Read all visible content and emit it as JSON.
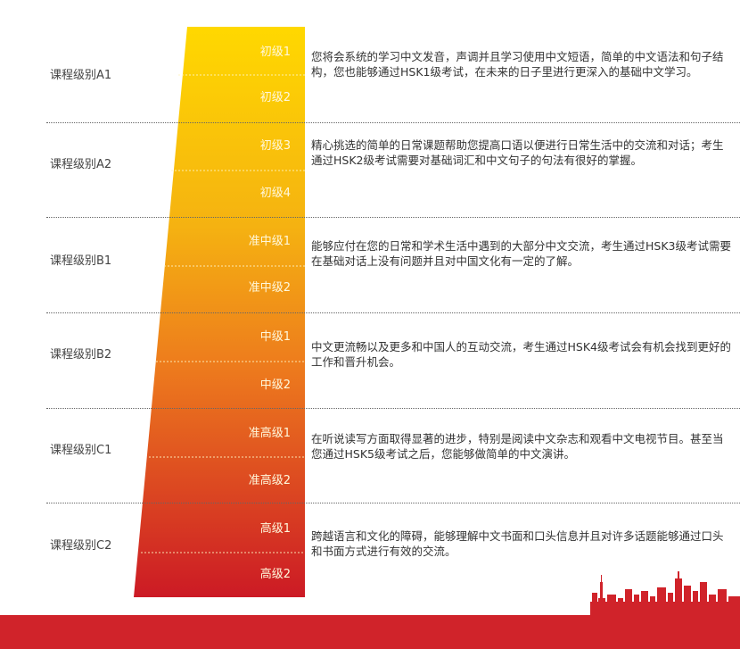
{
  "levels": [
    {
      "label": "课程级别A1",
      "sub1": "初级1",
      "sub2": "初级2",
      "desc": "您将会系统的学习中文发音，声调并且学习使用中文短语，简单的中文语法和句子结构，您也能够通过HSK1级考试，在未来的日子里进行更深入的基础中文学习。"
    },
    {
      "label": "课程级别A2",
      "sub1": "初级3",
      "sub2": "初级4",
      "desc": "精心挑选的简单的日常课题帮助您提高口语以便进行日常生活中的交流和对话；考生通过HSK2级考试需要对基础词汇和中文句子的句法有很好的掌握。"
    },
    {
      "label": "课程级别B1",
      "sub1": "准中级1",
      "sub2": "准中级2",
      "desc": "能够应付在您的日常和学术生活中遇到的大部分中文交流，考生通过HSK3级考试需要在基础对话上没有问题并且对中国文化有一定的了解。"
    },
    {
      "label": "课程级别B2",
      "sub1": "中级1",
      "sub2": "中级2",
      "desc": "中文更流畅以及更多和中国人的互动交流，考生通过HSK4级考试会有机会找到更好的工作和晋升机会。"
    },
    {
      "label": "课程级别C1",
      "sub1": "准高级1",
      "sub2": "准高级2",
      "desc": "在听说读写方面取得显著的进步，特别是阅读中文杂志和观看中文电视节目。甚至当您通过HSK5级考试之后，您能够做简单的中文演讲。"
    },
    {
      "label": "课程级别C2",
      "sub1": "高级1",
      "sub2": "高级2",
      "desc": "跨越语言和文化的障碍，能够理解中文书面和口头信息并且对许多话题能够通过口头和书面方式进行有效的交流。"
    }
  ],
  "colors": {
    "band_top": "#ffd700",
    "band_mid": "#f4a21a",
    "band_bottom": "#cf1b25",
    "footer": "#d0232a",
    "skyline": "#d0232a"
  }
}
